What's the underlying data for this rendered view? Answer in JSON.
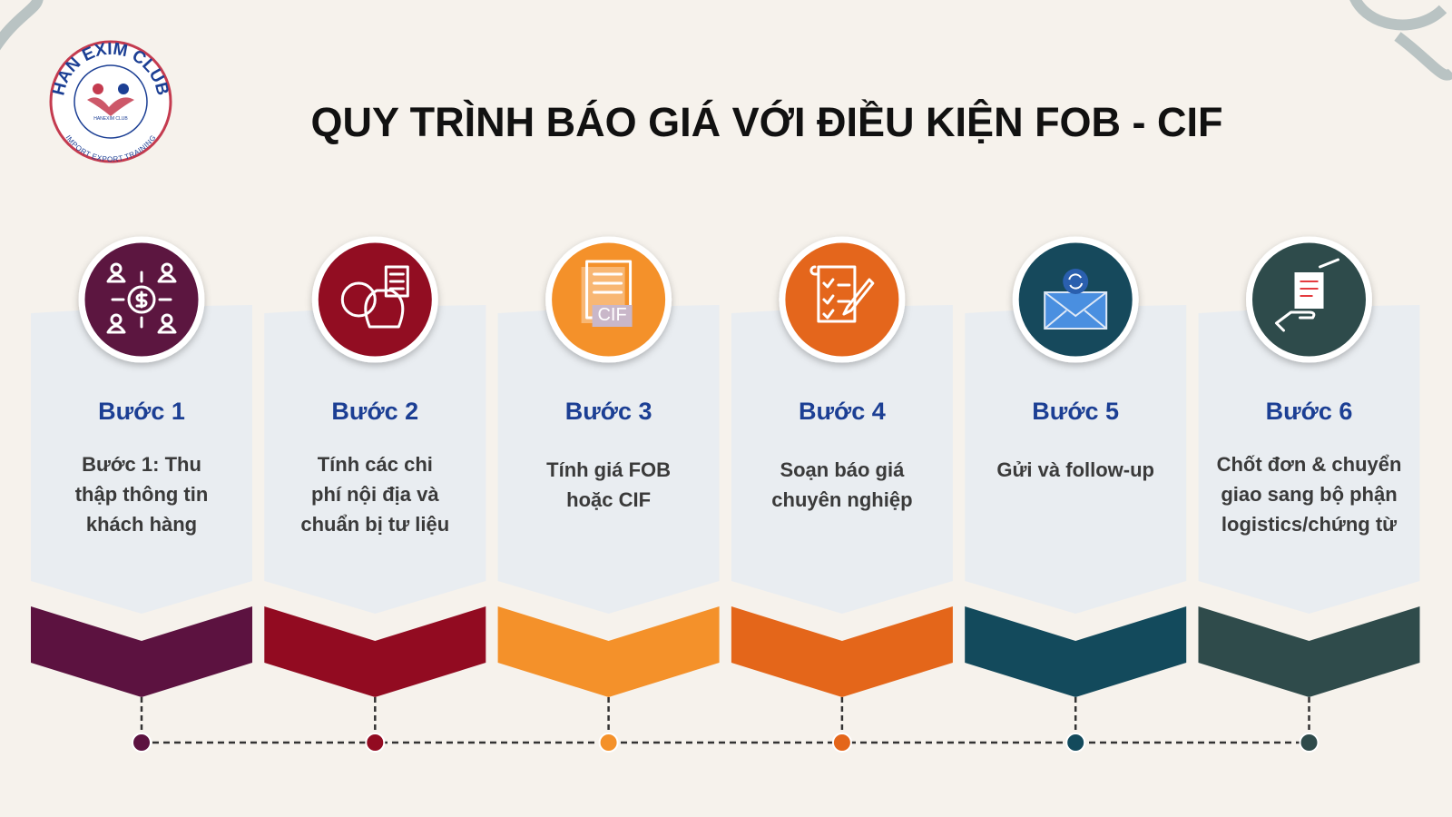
{
  "logo": {
    "top_text": "HAN EXIM CLUB",
    "bottom_text": "IMPORT EXPORT TRAINING",
    "center_text": "HANEXIM CLUB"
  },
  "title": "QUY TRÌNH BÁO GIÁ VỚI ĐIỀU KIỆN FOB - CIF",
  "steps": [
    {
      "label": "Bước 1",
      "description": [
        "Bước 1: Thu",
        "thập thông tin",
        "khách hàng"
      ],
      "color": "#5c1240"
    },
    {
      "label": "Bước 2",
      "description": [
        "Tính các chi",
        "phí nội địa và",
        "chuẩn bị tư liệu"
      ],
      "color": "#920b21"
    },
    {
      "label": "Bước 3",
      "description": [
        "Tính giá FOB",
        "hoặc CIF"
      ],
      "color": "#f4912a",
      "icon_text": "CIF"
    },
    {
      "label": "Bước 4",
      "description": [
        "Soạn báo giá",
        "chuyên nghiệp"
      ],
      "color": "#e4661a"
    },
    {
      "label": "Bước 5",
      "description": [
        "Gửi và follow-up"
      ],
      "color": "#134a5c"
    },
    {
      "label": "Bước 6",
      "description": [
        "Chốt đơn & chuyển",
        "giao sang bộ phận",
        "logistics/chứng từ"
      ],
      "color": "#2f4b4b"
    }
  ]
}
